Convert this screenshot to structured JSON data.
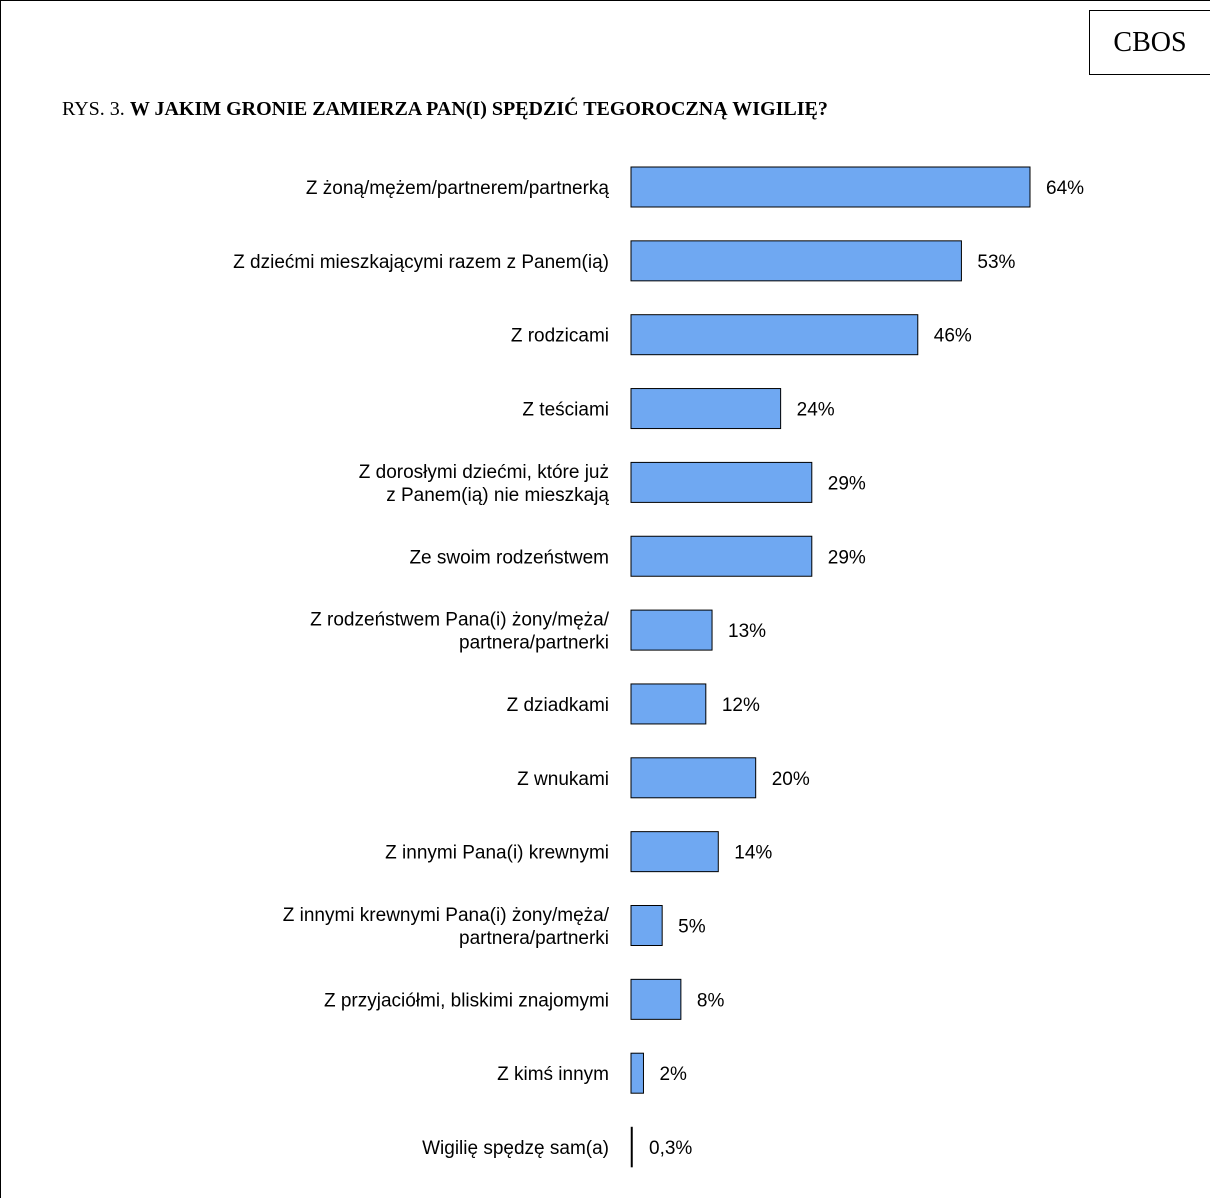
{
  "brand": "CBOS",
  "figure_prefix": "RYS. 3.",
  "chart_data": {
    "type": "bar",
    "orientation": "horizontal",
    "title": "W JAKIM GRONIE ZAMIERZA PAN(I) SPĘDZIĆ TEGOROCZNĄ WIGILIĘ?",
    "bar_color": "#6fa8f2",
    "xlim": [
      0,
      64
    ],
    "grid": false,
    "legend": "none",
    "categories": [
      [
        "Z żoną/mężem/partnerem/partnerką"
      ],
      [
        "Z dziećmi mieszkającymi razem z Panem(ią)"
      ],
      [
        "Z rodzicami"
      ],
      [
        "Z teściami"
      ],
      [
        "Z dorosłymi dziećmi, które już",
        "z Panem(ią) nie mieszkają"
      ],
      [
        "Ze swoim rodzeństwem"
      ],
      [
        "Z rodzeństwem Pana(i) żony/męża/",
        "partnera/partnerki"
      ],
      [
        "Z dziadkami"
      ],
      [
        "Z wnukami"
      ],
      [
        "Z innymi Pana(i) krewnymi"
      ],
      [
        "Z innymi krewnymi Pana(i) żony/męża/",
        "partnera/partnerki"
      ],
      [
        "Z przyjaciółmi, bliskimi znajomymi"
      ],
      [
        "Z kimś innym"
      ],
      [
        "Wigilię spędzę sam(a)"
      ]
    ],
    "values": [
      64,
      53,
      46,
      24,
      29,
      29,
      13,
      12,
      20,
      14,
      5,
      8,
      2,
      0.3
    ],
    "value_labels": [
      "64%",
      "53%",
      "46%",
      "24%",
      "29%",
      "29%",
      "13%",
      "12%",
      "20%",
      "14%",
      "5%",
      "8%",
      "2%",
      "0,3%"
    ]
  }
}
